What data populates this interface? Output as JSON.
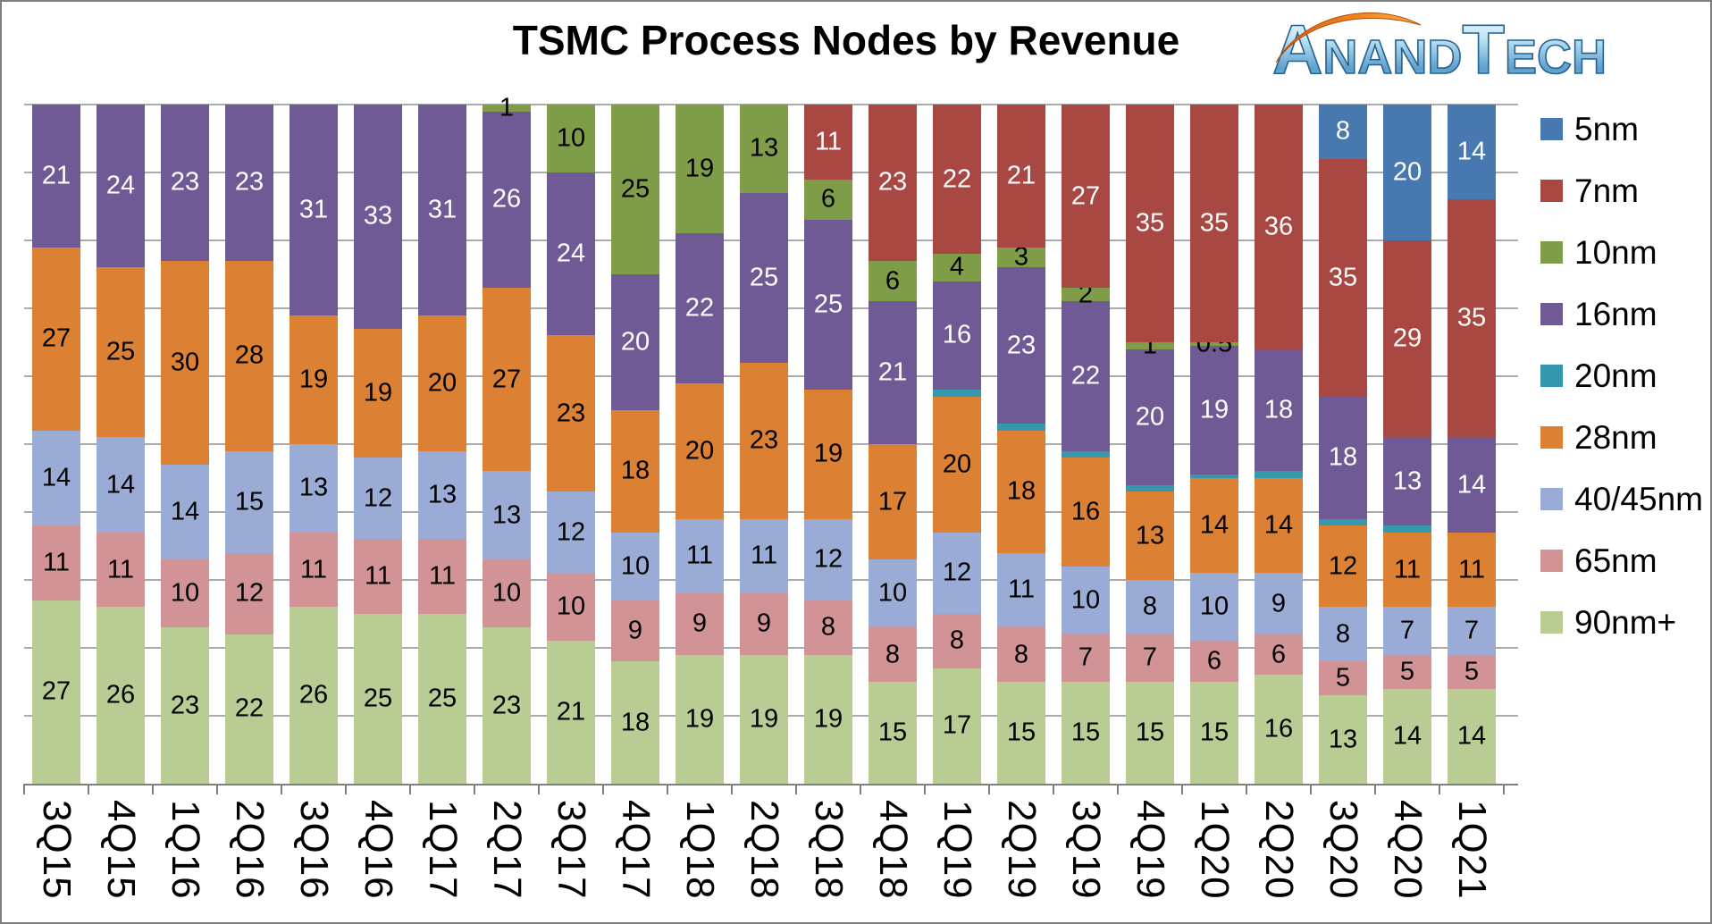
{
  "title": "TSMC Process Nodes by Revenue",
  "logo": {
    "text": "AnandTech"
  },
  "chart_data": {
    "type": "bar",
    "stacked": true,
    "unit": "percent of revenue",
    "title": "TSMC Process Nodes by Revenue",
    "xlabel": "",
    "ylabel": "",
    "ylim": [
      0,
      100
    ],
    "gridline_step": 10,
    "grid": true,
    "legend_position": "right",
    "categories": [
      "3Q15",
      "4Q15",
      "1Q16",
      "2Q16",
      "3Q16",
      "4Q16",
      "1Q17",
      "2Q17",
      "3Q17",
      "4Q17",
      "1Q18",
      "2Q18",
      "3Q18",
      "4Q18",
      "1Q19",
      "2Q19",
      "3Q19",
      "4Q19",
      "1Q20",
      "2Q20",
      "3Q20",
      "4Q20",
      "1Q21"
    ],
    "series": [
      {
        "name": "5nm",
        "color": "#4778af",
        "label_color": "#ffffff",
        "show_labels": true,
        "values": [
          0,
          0,
          0,
          0,
          0,
          0,
          0,
          0,
          0,
          0,
          0,
          0,
          0,
          0,
          0,
          0,
          0,
          0,
          0,
          0,
          8,
          20,
          14
        ]
      },
      {
        "name": "7nm",
        "color": "#a94843",
        "label_color": "#ffffff",
        "show_labels": true,
        "values": [
          0,
          0,
          0,
          0,
          0,
          0,
          0,
          0,
          0,
          0,
          0,
          0,
          11,
          23,
          22,
          21,
          27,
          35,
          35,
          36,
          35,
          29,
          35
        ]
      },
      {
        "name": "10nm",
        "color": "#7f9d49",
        "label_color": "#000000",
        "show_labels": true,
        "values": [
          0,
          0,
          0,
          0,
          0,
          0,
          0,
          1,
          10,
          25,
          19,
          13,
          6,
          6,
          4,
          3,
          2,
          1,
          0.5,
          0,
          0,
          0,
          0
        ]
      },
      {
        "name": "16nm",
        "color": "#6f5a96",
        "label_color": "#ffffff",
        "show_labels": true,
        "values": [
          21,
          24,
          23,
          23,
          31,
          33,
          31,
          26,
          24,
          20,
          22,
          25,
          25,
          21,
          16,
          23,
          22,
          20,
          19,
          18,
          18,
          13,
          14
        ]
      },
      {
        "name": "20nm",
        "color": "#3598ac",
        "label_color": "#000000",
        "show_labels": false,
        "values": [
          0,
          0,
          0,
          0,
          0,
          0,
          0,
          0,
          0,
          0,
          0,
          0,
          0,
          0,
          1,
          1,
          1,
          1,
          0.5,
          1,
          1,
          1,
          0
        ]
      },
      {
        "name": "28nm",
        "color": "#dc8133",
        "label_color": "#000000",
        "show_labels": true,
        "values": [
          27,
          25,
          30,
          28,
          19,
          19,
          20,
          27,
          23,
          18,
          20,
          23,
          19,
          17,
          20,
          18,
          16,
          13,
          14,
          14,
          12,
          11,
          11
        ]
      },
      {
        "name": "40/45nm",
        "color": "#9aacd5",
        "label_color": "#000000",
        "show_labels": true,
        "values": [
          14,
          14,
          14,
          15,
          13,
          12,
          13,
          13,
          12,
          10,
          11,
          11,
          12,
          10,
          12,
          11,
          10,
          8,
          10,
          9,
          8,
          7,
          7
        ]
      },
      {
        "name": "65nm",
        "color": "#d19395",
        "label_color": "#000000",
        "show_labels": true,
        "values": [
          11,
          11,
          10,
          12,
          11,
          11,
          11,
          10,
          10,
          9,
          9,
          9,
          8,
          8,
          8,
          8,
          7,
          7,
          6,
          6,
          5,
          5,
          5
        ]
      },
      {
        "name": "90nm+",
        "color": "#b9cc93",
        "label_color": "#000000",
        "show_labels": true,
        "values": [
          27,
          26,
          23,
          22,
          26,
          25,
          25,
          23,
          21,
          18,
          19,
          19,
          19,
          15,
          17,
          15,
          15,
          15,
          15,
          16,
          13,
          14,
          14
        ]
      }
    ]
  },
  "logo_colors": {
    "letter_top": "#ffffff",
    "letter_mid": "#b9e2f4",
    "letter_low": "#5c9fcd",
    "letter_edge": "#27618c",
    "swoosh_light": "#ffb347",
    "swoosh_dark": "#e2570a"
  }
}
